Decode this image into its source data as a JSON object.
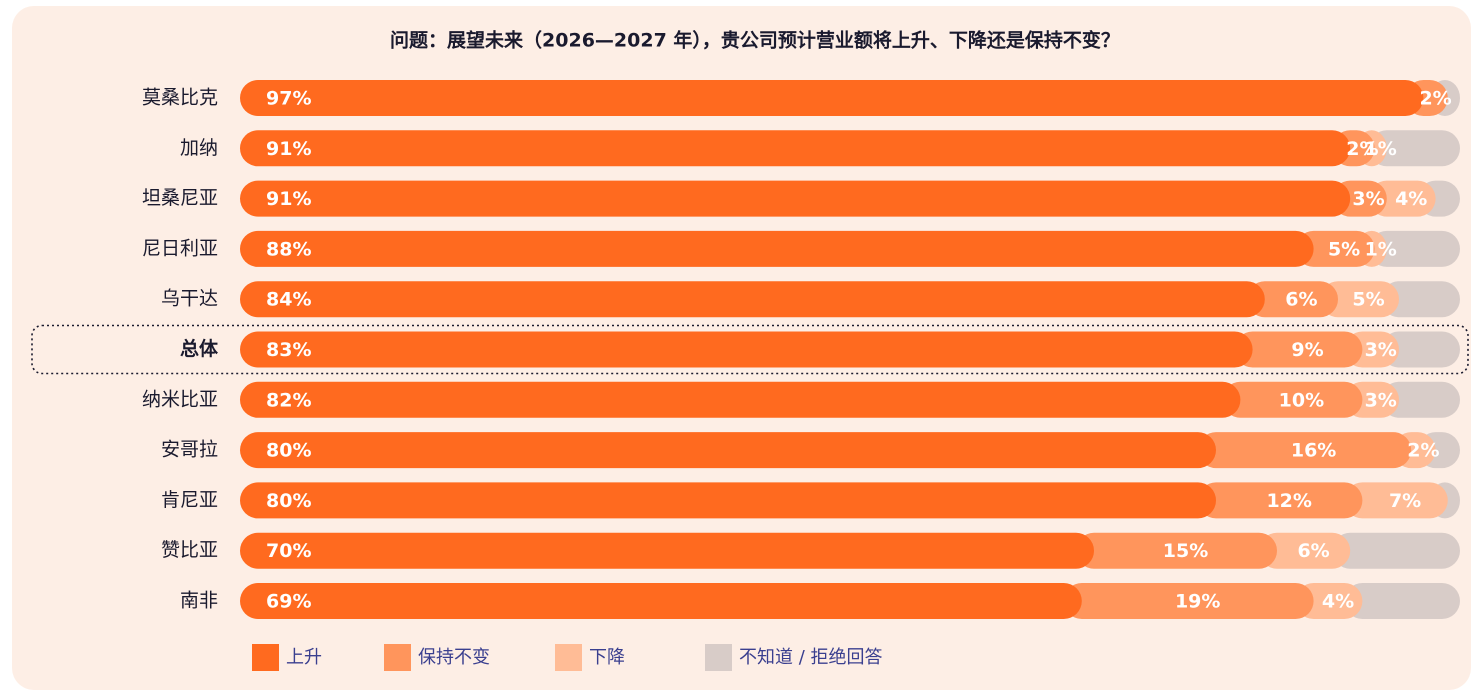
{
  "chart_data": {
    "type": "stacked_bar_horizontal",
    "title": "问题：展望未来（2026—2027 年），贵公司预计营业额将上升、下降还是保持不变？",
    "categories": [
      "莫桑比克",
      "加纳",
      "坦桑尼亚",
      "尼日利亚",
      "乌干达",
      "总体",
      "纳米比亚",
      "安哥拉",
      "肯尼亚",
      "赞比亚",
      "南非"
    ],
    "highlight": "总体",
    "xlim": [
      0,
      100
    ],
    "series": [
      {
        "name": "上升",
        "color": "#ff6a1f",
        "values": [
          97,
          91,
          91,
          88,
          84,
          83,
          82,
          80,
          80,
          70,
          69
        ],
        "value_labels": [
          "97%",
          "91%",
          "91%",
          "88%",
          "84%",
          "83%",
          "82%",
          "80%",
          "80%",
          "70%",
          "69%"
        ]
      },
      {
        "name": "保持不变",
        "color": "#ff955c",
        "values": [
          2,
          2,
          3,
          5,
          6,
          9,
          10,
          16,
          12,
          15,
          19
        ],
        "value_labels": [
          "2%",
          "2%",
          "3%",
          "5%",
          "6%",
          "9%",
          "10%",
          "16%",
          "12%",
          "15%",
          "19%"
        ]
      },
      {
        "name": "下降",
        "color": "#ffbc96",
        "values": [
          0,
          1,
          4,
          1,
          5,
          3,
          3,
          2,
          7,
          6,
          4
        ],
        "value_labels": [
          null,
          "1%",
          "4%",
          "1%",
          "5%",
          "3%",
          "3%",
          "2%",
          "7%",
          "6%",
          "4%"
        ]
      },
      {
        "name": "不知道 / 拒绝回答",
        "color": "#d8ccc8",
        "values": [
          1,
          6,
          2,
          6,
          5,
          5,
          5,
          2,
          1,
          9,
          8
        ]
      }
    ]
  }
}
